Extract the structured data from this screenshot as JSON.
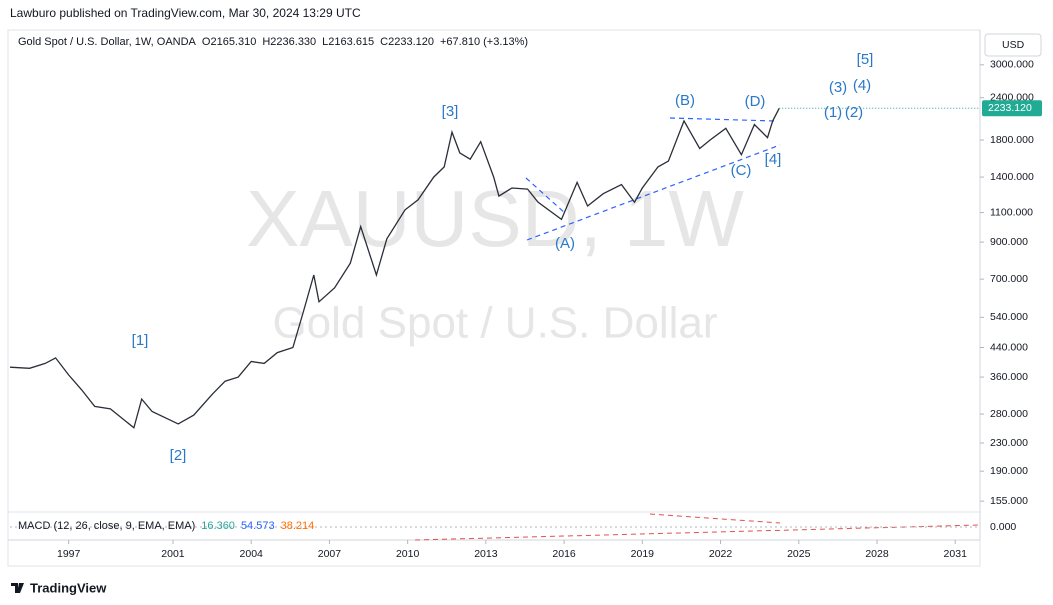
{
  "header": {
    "published": "Lawburo published on TradingView.com, Mar 30, 2024 13:29 UTC",
    "symbol_line": "Gold Spot / U.S. Dollar, 1W, OANDA",
    "ohlc": [
      "O2165.310",
      "H2236.330",
      "L2163.615",
      "C2233.120",
      "+67.810 (+3.13%)"
    ],
    "currency": "USD"
  },
  "watermark": {
    "symbol": "XAUUSD, 1W",
    "description": "Gold Spot / U.S. Dollar"
  },
  "footer": {
    "brand": "TradingView"
  },
  "chart_data": [
    {
      "type": "line",
      "log_scale": true,
      "color": "#2a2e39",
      "x": [
        1994.75,
        1995.5,
        1996.1,
        1996.5,
        1997.0,
        1997.5,
        1998.0,
        1998.6,
        1999.5,
        1999.8,
        2000.2,
        2001.2,
        2001.8,
        2002.5,
        2003.0,
        2003.5,
        2004.0,
        2004.5,
        2005.0,
        2005.6,
        2006.0,
        2006.4,
        2006.6,
        2007.2,
        2007.8,
        2008.2,
        2008.8,
        2009.2,
        2009.9,
        2010.4,
        2011.0,
        2011.4,
        2011.7,
        2012.0,
        2012.4,
        2012.8,
        2013.3,
        2013.5,
        2014.0,
        2014.6,
        2015.0,
        2015.9,
        2016.5,
        2016.9,
        2017.5,
        2018.2,
        2018.7,
        2019.0,
        2019.6,
        2020.0,
        2020.6,
        2021.2,
        2021.6,
        2022.2,
        2022.8,
        2023.3,
        2023.8,
        2024.0,
        2024.25
      ],
      "values": [
        385,
        382,
        395,
        410,
        365,
        330,
        295,
        290,
        255,
        310,
        285,
        262,
        278,
        320,
        350,
        360,
        400,
        395,
        425,
        440,
        560,
        720,
        600,
        660,
        780,
        1000,
        720,
        920,
        1120,
        1200,
        1400,
        1500,
        1900,
        1650,
        1580,
        1780,
        1400,
        1230,
        1300,
        1290,
        1180,
        1050,
        1350,
        1150,
        1250,
        1330,
        1180,
        1300,
        1500,
        1560,
        2050,
        1700,
        1800,
        1950,
        1630,
        2000,
        1830,
        2050,
        2233.12
      ],
      "last_price_label": "2233.120",
      "xlim": [
        1994.75,
        2031.95
      ],
      "ylim": [
        144,
        3800
      ],
      "xticks": [
        1997,
        2001,
        2004,
        2007,
        2010,
        2013,
        2016,
        2019,
        2022,
        2025,
        2028,
        2031
      ],
      "yticks": [
        {
          "value": 3000,
          "label": "3000.000"
        },
        {
          "value": 2400,
          "label": "2400.000"
        },
        {
          "value": 1800,
          "label": "1800.000"
        },
        {
          "value": 1400,
          "label": "1400.000"
        },
        {
          "value": 1100,
          "label": "1100.000"
        },
        {
          "value": 900,
          "label": "900.000"
        },
        {
          "value": 700,
          "label": "700.000"
        },
        {
          "value": 540,
          "label": "540.000"
        },
        {
          "value": 440,
          "label": "440.000"
        },
        {
          "value": 360,
          "label": "360.000"
        },
        {
          "value": 280,
          "label": "280.000"
        },
        {
          "value": 230,
          "label": "230.000"
        },
        {
          "value": 190,
          "label": "190.000"
        },
        {
          "value": 155,
          "label": "155.000"
        }
      ],
      "annotations": [
        "[1]",
        "[2]",
        "[3]",
        "[4]",
        "[5]",
        "(A)",
        "(B)",
        "(C)",
        "(D)",
        "(1)",
        "(2)",
        "(3)",
        "(4)"
      ]
    },
    {
      "type": "indicator",
      "title": "MACD (12, 26, close, 9, EMA, EMA)",
      "values": [
        16.36,
        54.573,
        38.214
      ],
      "value_labels": [
        "16.360",
        "54.573",
        "38.214"
      ],
      "colors": [
        "#26a69a",
        "#2962ff",
        "#ff6d00"
      ],
      "ylim": [
        -150,
        150
      ],
      "yticks": [
        {
          "value": 0,
          "label": "0.000"
        }
      ]
    }
  ]
}
